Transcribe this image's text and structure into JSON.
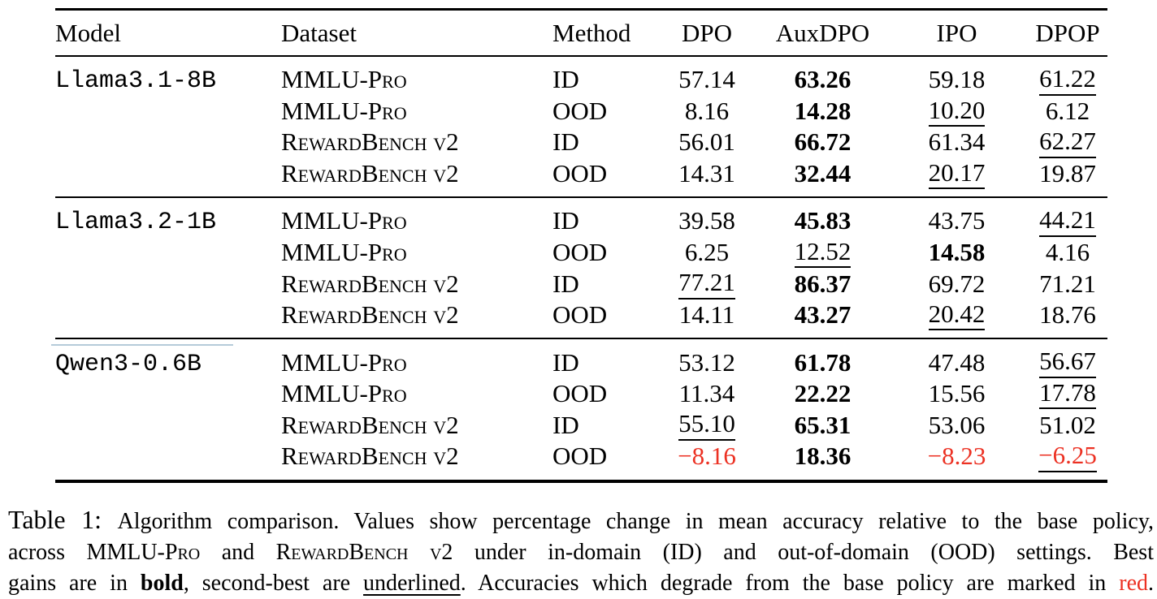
{
  "colors": {
    "text": "#000000",
    "degrade_red": "#ec3123",
    "artifact_line_blue": "#b5cbd9",
    "background": "#ffffff"
  },
  "table": {
    "columns": [
      "Model",
      "Dataset",
      "Method",
      "DPO",
      "AuxDPO",
      "IPO",
      "DPOP"
    ],
    "groups": [
      {
        "model": "Llama3.1-8B",
        "rows": [
          {
            "dataset": "MMLU-Pro",
            "method": "ID",
            "values": [
              {
                "t": "57.14"
              },
              {
                "t": "63.26",
                "b": true
              },
              {
                "t": "59.18"
              },
              {
                "t": "61.22",
                "u": true
              }
            ]
          },
          {
            "dataset": "MMLU-Pro",
            "method": "OOD",
            "values": [
              {
                "t": "8.16"
              },
              {
                "t": "14.28",
                "b": true
              },
              {
                "t": "10.20",
                "u": true
              },
              {
                "t": "6.12"
              }
            ]
          },
          {
            "dataset": "RewardBench v2",
            "method": "ID",
            "values": [
              {
                "t": "56.01"
              },
              {
                "t": "66.72",
                "b": true
              },
              {
                "t": "61.34"
              },
              {
                "t": "62.27",
                "u": true
              }
            ]
          },
          {
            "dataset": "RewardBench v2",
            "method": "OOD",
            "values": [
              {
                "t": "14.31"
              },
              {
                "t": "32.44",
                "b": true
              },
              {
                "t": "20.17",
                "u": true
              },
              {
                "t": "19.87"
              }
            ]
          }
        ]
      },
      {
        "model": "Llama3.2-1B",
        "rows": [
          {
            "dataset": "MMLU-Pro",
            "method": "ID",
            "values": [
              {
                "t": "39.58"
              },
              {
                "t": "45.83",
                "b": true
              },
              {
                "t": "43.75"
              },
              {
                "t": "44.21",
                "u": true
              }
            ]
          },
          {
            "dataset": "MMLU-Pro",
            "method": "OOD",
            "values": [
              {
                "t": "6.25"
              },
              {
                "t": "12.52",
                "u": true
              },
              {
                "t": "14.58",
                "b": true
              },
              {
                "t": "4.16"
              }
            ]
          },
          {
            "dataset": "RewardBench v2",
            "method": "ID",
            "values": [
              {
                "t": "77.21",
                "u": true
              },
              {
                "t": "86.37",
                "b": true
              },
              {
                "t": "69.72"
              },
              {
                "t": "71.21"
              }
            ]
          },
          {
            "dataset": "RewardBench v2",
            "method": "OOD",
            "values": [
              {
                "t": "14.11"
              },
              {
                "t": "43.27",
                "b": true
              },
              {
                "t": "20.42",
                "u": true
              },
              {
                "t": "18.76"
              }
            ]
          }
        ]
      },
      {
        "model": "Qwen3-0.6B",
        "rows": [
          {
            "dataset": "MMLU-Pro",
            "method": "ID",
            "values": [
              {
                "t": "53.12"
              },
              {
                "t": "61.78",
                "b": true
              },
              {
                "t": "47.48"
              },
              {
                "t": "56.67",
                "u": true
              }
            ]
          },
          {
            "dataset": "MMLU-Pro",
            "method": "OOD",
            "values": [
              {
                "t": "11.34"
              },
              {
                "t": "22.22",
                "b": true
              },
              {
                "t": "15.56"
              },
              {
                "t": "17.78",
                "u": true
              }
            ]
          },
          {
            "dataset": "RewardBench v2",
            "method": "ID",
            "values": [
              {
                "t": "55.10",
                "u": true
              },
              {
                "t": "65.31",
                "b": true
              },
              {
                "t": "53.06"
              },
              {
                "t": "51.02"
              }
            ]
          },
          {
            "dataset": "RewardBench v2",
            "method": "OOD",
            "values": [
              {
                "t": "−8.16",
                "r": true
              },
              {
                "t": "18.36",
                "b": true
              },
              {
                "t": "−8.23",
                "r": true
              },
              {
                "t": "−6.25",
                "r": true,
                "u": true
              }
            ]
          }
        ]
      }
    ]
  },
  "caption": {
    "lines": [
      [
        {
          "text": "Table 1: ",
          "style": "label"
        },
        {
          "text": "Algorithm comparison. Values show percentage change in mean accuracy relative to the base policy,",
          "style": "plain"
        }
      ],
      [
        {
          "text": "across ",
          "style": "plain"
        },
        {
          "text": "MMLU-Pro",
          "style": "smallcaps"
        },
        {
          "text": " and ",
          "style": "plain"
        },
        {
          "text": "RewardBench v2",
          "style": "smallcaps"
        },
        {
          "text": " under in-domain (ID) and out-of-domain (OOD) settings. Best",
          "style": "plain"
        }
      ],
      [
        {
          "text": "gains are in ",
          "style": "plain"
        },
        {
          "text": "bold",
          "style": "bold"
        },
        {
          "text": ", second-best are ",
          "style": "plain"
        },
        {
          "text": "underlined",
          "style": "underline"
        },
        {
          "text": ". Accuracies which degrade from the base policy are marked in ",
          "style": "plain"
        },
        {
          "text": "red",
          "style": "red"
        },
        {
          "text": ".",
          "style": "plain"
        }
      ]
    ]
  }
}
